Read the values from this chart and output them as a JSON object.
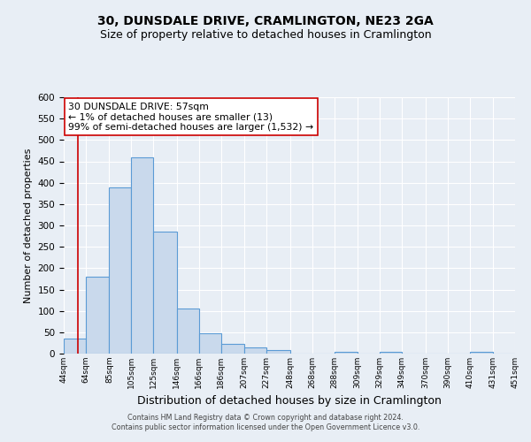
{
  "title": "30, DUNSDALE DRIVE, CRAMLINGTON, NE23 2GA",
  "subtitle": "Size of property relative to detached houses in Cramlington",
  "xlabel": "Distribution of detached houses by size in Cramlington",
  "ylabel": "Number of detached properties",
  "footer_line1": "Contains HM Land Registry data © Crown copyright and database right 2024.",
  "footer_line2": "Contains public sector information licensed under the Open Government Licence v3.0.",
  "bin_edges": [
    44,
    64,
    85,
    105,
    125,
    146,
    166,
    186,
    207,
    227,
    248,
    268,
    288,
    309,
    329,
    349,
    370,
    390,
    410,
    431,
    451
  ],
  "bin_labels": [
    "44sqm",
    "64sqm",
    "85sqm",
    "105sqm",
    "125sqm",
    "146sqm",
    "166sqm",
    "186sqm",
    "207sqm",
    "227sqm",
    "248sqm",
    "268sqm",
    "288sqm",
    "309sqm",
    "329sqm",
    "349sqm",
    "370sqm",
    "390sqm",
    "410sqm",
    "431sqm",
    "451sqm"
  ],
  "counts": [
    35,
    180,
    390,
    460,
    285,
    105,
    48,
    22,
    15,
    8,
    0,
    0,
    5,
    0,
    5,
    0,
    0,
    0,
    5,
    0
  ],
  "bar_facecolor": "#c9d9ec",
  "bar_edgecolor": "#5b9bd5",
  "property_line_x": 57,
  "property_line_color": "#cc0000",
  "annotation_title": "30 DUNSDALE DRIVE: 57sqm",
  "annotation_line1": "← 1% of detached houses are smaller (13)",
  "annotation_line2": "99% of semi-detached houses are larger (1,532) →",
  "annotation_box_edgecolor": "#cc0000",
  "annotation_box_facecolor": "#ffffff",
  "ylim": [
    0,
    600
  ],
  "yticks": [
    0,
    50,
    100,
    150,
    200,
    250,
    300,
    350,
    400,
    450,
    500,
    550,
    600
  ],
  "background_color": "#e8eef5",
  "axes_background": "#e8eef5",
  "title_fontsize": 10,
  "subtitle_fontsize": 9,
  "ylabel_fontsize": 8,
  "xlabel_fontsize": 9
}
